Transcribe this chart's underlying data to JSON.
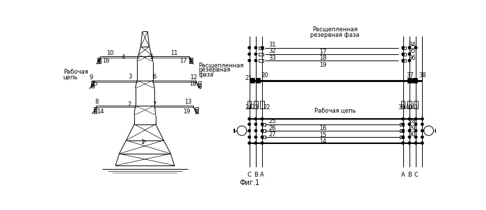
{
  "fig_title": "Фиг.1",
  "top_label1": "Расщепленная",
  "top_label2": "резервная фаза",
  "mid_label": "Рабочая цепь",
  "left_label1": "Рабочая",
  "left_label2": "цепь",
  "right_label1": "Расщепленная",
  "right_label2": "резервная",
  "right_label3": "фаза",
  "bg_color": "#ffffff"
}
